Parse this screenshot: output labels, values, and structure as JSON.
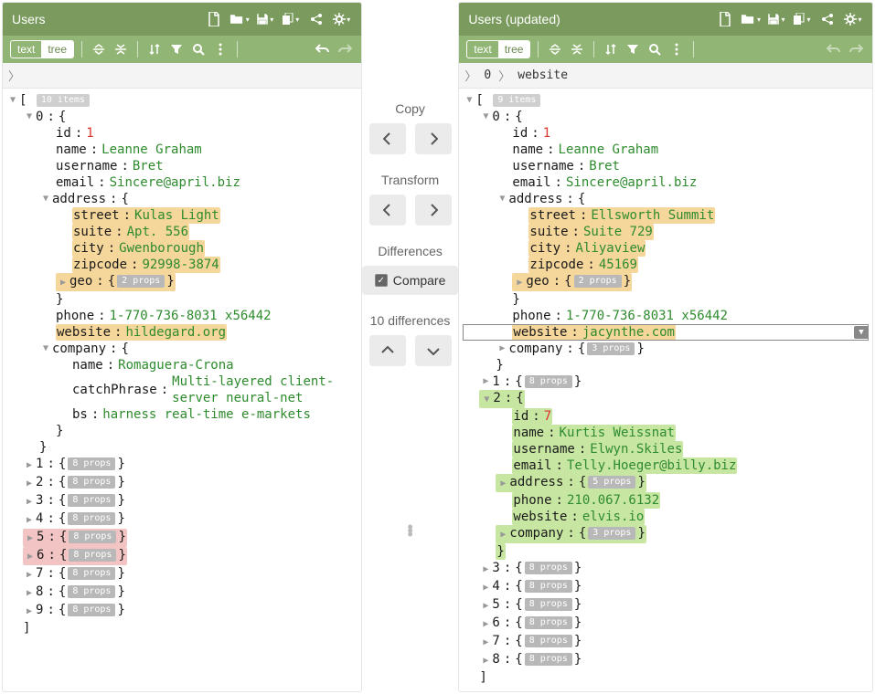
{
  "colors": {
    "toolbar_dark": "#7a9a5e",
    "toolbar_light": "#91b574",
    "highlight_diff": "#f5d69b",
    "highlight_added": "#c7e6a1",
    "highlight_removed": "#f2c4c4",
    "string": "#2e8b2e",
    "number": "#d9342b"
  },
  "left": {
    "title": "Users",
    "modes": {
      "text": "text",
      "tree": "tree",
      "active": "tree"
    },
    "root_count": "10 items",
    "item0": {
      "id": 1,
      "name": "Leanne Graham",
      "username": "Bret",
      "email": "Sincere@april.biz",
      "address": {
        "street": "Kulas Light",
        "suite": "Apt. 556",
        "city": "Gwenborough",
        "zipcode": "92998-3874",
        "geo_props": "2 props"
      },
      "phone": "1-770-736-8031 x56442",
      "website": "hildegard.org",
      "company": {
        "name": "Romaguera-Crona",
        "catchPhrase": "Multi-layered client-server neural-net",
        "bs": "harness real-time e-markets"
      }
    },
    "collapsed": [
      {
        "idx": 1,
        "props": "8 props",
        "hl": ""
      },
      {
        "idx": 2,
        "props": "8 props",
        "hl": ""
      },
      {
        "idx": 3,
        "props": "8 props",
        "hl": ""
      },
      {
        "idx": 4,
        "props": "8 props",
        "hl": ""
      },
      {
        "idx": 5,
        "props": "8 props",
        "hl": "red"
      },
      {
        "idx": 6,
        "props": "8 props",
        "hl": "red"
      },
      {
        "idx": 7,
        "props": "8 props",
        "hl": ""
      },
      {
        "idx": 8,
        "props": "8 props",
        "hl": ""
      },
      {
        "idx": 9,
        "props": "8 props",
        "hl": ""
      }
    ]
  },
  "right": {
    "title": "Users (updated)",
    "modes": {
      "text": "text",
      "tree": "tree",
      "active": "tree"
    },
    "breadcrumb": [
      "0",
      "website"
    ],
    "root_count": "9 items",
    "item0": {
      "id": 1,
      "name": "Leanne Graham",
      "username": "Bret",
      "email": "Sincere@april.biz",
      "address": {
        "street": "Ellsworth Summit",
        "suite": "Suite 729",
        "city": "Aliyaview",
        "zipcode": "45169",
        "geo_props": "2 props"
      },
      "phone": "1-770-736-8031 x56442",
      "website": "jacynthe.com",
      "company_props": "3 props"
    },
    "item1": {
      "idx": 1,
      "props": "8 props"
    },
    "item2": {
      "id": 7,
      "name": "Kurtis Weissnat",
      "username": "Elwyn.Skiles",
      "email": "Telly.Hoeger@billy.biz",
      "address_props": "5 props",
      "phone": "210.067.6132",
      "website": "elvis.io",
      "company_props": "3 props"
    },
    "collapsed": [
      {
        "idx": 3,
        "props": "8 props"
      },
      {
        "idx": 4,
        "props": "8 props"
      },
      {
        "idx": 5,
        "props": "8 props"
      },
      {
        "idx": 6,
        "props": "8 props"
      },
      {
        "idx": 7,
        "props": "8 props"
      },
      {
        "idx": 8,
        "props": "8 props"
      }
    ]
  },
  "center": {
    "copy": "Copy",
    "transform": "Transform",
    "differences": "Differences",
    "compare": "Compare",
    "diff_count": "10 differences"
  },
  "labels": {
    "id": "id",
    "name": "name",
    "username": "username",
    "email": "email",
    "address": "address",
    "street": "street",
    "suite": "suite",
    "city": "city",
    "zipcode": "zipcode",
    "geo": "geo",
    "phone": "phone",
    "website": "website",
    "company": "company",
    "catchPhrase": "catchPhrase",
    "bs": "bs"
  }
}
